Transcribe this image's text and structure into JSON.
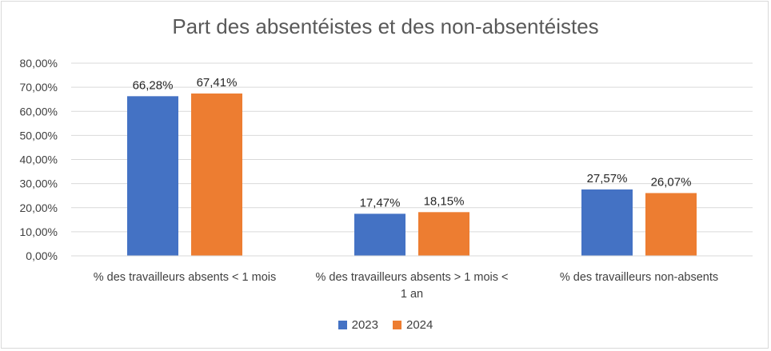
{
  "chart_data": {
    "type": "bar",
    "title": "Part des absentéistes et des non-absentéistes",
    "categories": [
      [
        "% des travailleurs absents < 1 mois"
      ],
      [
        "% des travailleurs absents  > 1 mois <",
        "1 an"
      ],
      [
        "% des travailleurs non-absents"
      ]
    ],
    "series": [
      {
        "name": "2023",
        "color": "#4472C4",
        "values": [
          66.28,
          17.47,
          27.57
        ],
        "labels": [
          "66,28%",
          "17,47%",
          "27,57%"
        ]
      },
      {
        "name": "2024",
        "color": "#ED7D31",
        "values": [
          67.41,
          18.15,
          26.07
        ],
        "labels": [
          "67,41%",
          "18,15%",
          "26,07%"
        ]
      }
    ],
    "ylim": [
      0,
      80
    ],
    "yticks": [
      "0,00%",
      "10,00%",
      "20,00%",
      "30,00%",
      "40,00%",
      "50,00%",
      "60,00%",
      "70,00%",
      "80,00%"
    ],
    "xlabel": "",
    "ylabel": "",
    "grid": true,
    "legend_position": "bottom"
  }
}
